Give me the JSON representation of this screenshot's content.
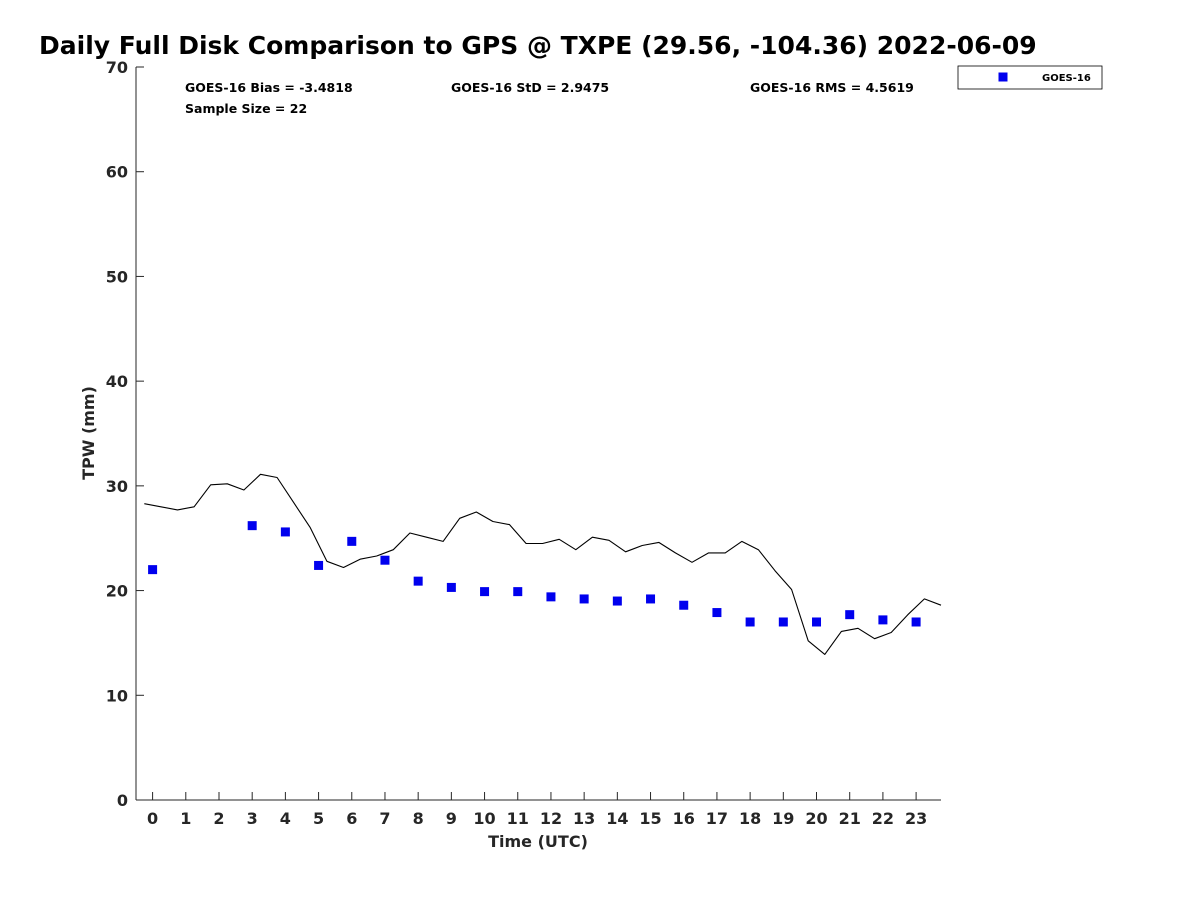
{
  "chart_data": {
    "type": "scatter",
    "title": "Daily Full Disk Comparison to GPS @ TXPE (29.56, -104.36) 2022-06-09",
    "xlabel": "Time (UTC)",
    "ylabel": "TPW (mm)",
    "xlim": [
      -0.5,
      23.75
    ],
    "ylim": [
      0,
      70
    ],
    "x_ticks": [
      0,
      1,
      2,
      3,
      4,
      5,
      6,
      7,
      8,
      9,
      10,
      11,
      12,
      13,
      14,
      15,
      16,
      17,
      18,
      19,
      20,
      21,
      22,
      23
    ],
    "y_ticks": [
      0,
      10,
      20,
      30,
      40,
      50,
      60,
      70
    ],
    "grid": false,
    "legend_position": "top-right (outside plot)",
    "stats": {
      "bias": "GOES-16 Bias = -3.4818",
      "std": "GOES-16 StD = 2.9475",
      "rms": "GOES-16 RMS = 4.5619",
      "sample_size": "Sample Size = 22"
    },
    "series": [
      {
        "name": "GOES-16",
        "kind": "marker",
        "marker": "square",
        "color": "#0000ee",
        "x": [
          0,
          3,
          4,
          5,
          6,
          7,
          8,
          9,
          10,
          11,
          12,
          13,
          14,
          15,
          16,
          17,
          18,
          19,
          20,
          21,
          22,
          23
        ],
        "y": [
          22.0,
          26.2,
          25.6,
          22.4,
          24.7,
          22.9,
          20.9,
          20.3,
          19.9,
          19.9,
          19.4,
          19.2,
          19.0,
          19.2,
          18.6,
          17.9,
          17.0,
          17.0,
          17.0,
          17.7,
          17.2,
          17.0
        ]
      },
      {
        "kind": "line",
        "color": "#000000",
        "x": [
          -0.25,
          0.25,
          0.75,
          1.25,
          1.75,
          2.25,
          2.75,
          3.25,
          3.75,
          4.25,
          4.75,
          5.25,
          5.75,
          6.25,
          6.75,
          7.25,
          7.75,
          8.25,
          8.75,
          9.25,
          9.75,
          10.25,
          10.75,
          11.25,
          11.75,
          12.25,
          12.75,
          13.25,
          13.75,
          14.25,
          14.75,
          15.25,
          15.75,
          16.25,
          16.75,
          17.25,
          17.75,
          18.25,
          18.75,
          19.25,
          19.75,
          20.25,
          20.75,
          21.25,
          21.75,
          22.25,
          22.75,
          23.25,
          23.75
        ],
        "y": [
          28.3,
          28.0,
          27.7,
          28.0,
          30.1,
          30.2,
          29.6,
          31.1,
          30.8,
          28.4,
          26.0,
          22.8,
          22.2,
          23.0,
          23.3,
          23.9,
          25.5,
          25.1,
          24.7,
          26.9,
          27.5,
          26.6,
          26.3,
          24.5,
          24.5,
          24.9,
          23.9,
          25.1,
          24.8,
          23.7,
          24.3,
          24.6,
          23.6,
          22.7,
          23.6,
          23.6,
          24.7,
          23.9,
          21.9,
          20.1,
          15.2,
          13.9,
          16.1,
          16.4,
          15.4,
          16.0,
          17.7,
          19.2,
          18.6
        ]
      }
    ]
  }
}
